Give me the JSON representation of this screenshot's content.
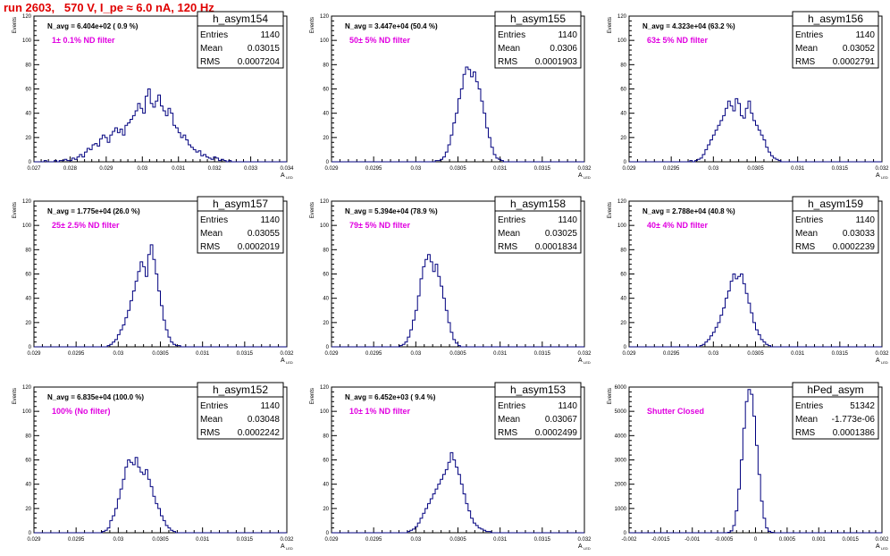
{
  "page_title": "run 2603,   570 V, I_pe ≈ 6.0 nA, 120 Hz",
  "colors": {
    "hist": "#00007f",
    "filter_text": "#e000e0",
    "title": "#e00000"
  },
  "chart_data": [
    {
      "type": "histogram",
      "name": "h_asym154",
      "stats": [
        [
          "Entries",
          "1140"
        ],
        [
          "Mean",
          "0.03015"
        ],
        [
          "RMS",
          "0.0007204"
        ]
      ],
      "navg": "N_avg = 6.404e+02 ( 0.9 %)",
      "filter": "1± 0.1% ND filter",
      "ylabel": "Events",
      "xlabel": "A",
      "xlabel_sub": "LED",
      "xlim": [
        0.027,
        0.034
      ],
      "ylim": [
        0,
        120
      ],
      "xticks": [
        "0.027",
        "0.028",
        "0.029",
        "0.03",
        "0.031",
        "0.032",
        "0.033",
        "0.034"
      ],
      "yticks": [
        "0",
        "20",
        "40",
        "60",
        "80",
        "100",
        "120"
      ],
      "values": [
        0,
        0,
        0,
        0,
        1,
        0,
        0,
        0,
        1,
        0,
        1,
        1,
        2,
        1,
        1,
        3,
        2,
        4,
        6,
        4,
        8,
        11,
        10,
        14,
        15,
        13,
        19,
        22,
        20,
        16,
        22,
        25,
        28,
        24,
        27,
        22,
        30,
        32,
        35,
        38,
        42,
        48,
        44,
        40,
        54,
        60,
        48,
        45,
        50,
        55,
        46,
        42,
        38,
        44,
        40,
        30,
        28,
        24,
        20,
        22,
        18,
        14,
        12,
        10,
        8,
        9,
        5,
        6,
        4,
        3,
        2,
        4,
        3,
        1,
        2,
        1,
        0,
        1,
        0,
        0,
        0,
        0,
        0,
        0,
        0,
        0,
        0,
        0,
        0,
        0,
        0,
        0,
        0,
        0,
        0,
        0,
        0,
        0,
        0,
        0
      ]
    },
    {
      "type": "histogram",
      "name": "h_asym155",
      "stats": [
        [
          "Entries",
          "1140"
        ],
        [
          "Mean",
          "0.0306"
        ],
        [
          "RMS",
          "0.0001903"
        ]
      ],
      "navg": "N_avg = 3.447e+04 (50.4 %)",
      "filter": "50± 5% ND filter",
      "ylabel": "Events",
      "xlabel": "A",
      "xlabel_sub": "LED",
      "xlim": [
        0.029,
        0.032
      ],
      "ylim": [
        0,
        120
      ],
      "xticks": [
        "0.029",
        "0.0295",
        "0.03",
        "0.0305",
        "0.031",
        "0.0315",
        "0.032"
      ],
      "yticks": [
        "0",
        "20",
        "40",
        "60",
        "80",
        "100",
        "120"
      ],
      "values": [
        0,
        0,
        0,
        0,
        0,
        0,
        0,
        0,
        0,
        0,
        0,
        0,
        0,
        0,
        0,
        0,
        0,
        0,
        0,
        0,
        0,
        0,
        0,
        0,
        0,
        0,
        0,
        0,
        0,
        0,
        0,
        0,
        0,
        0,
        0,
        0,
        0,
        0,
        0,
        0,
        0,
        1,
        1,
        2,
        4,
        8,
        14,
        22,
        32,
        40,
        52,
        60,
        72,
        78,
        76,
        70,
        74,
        66,
        60,
        50,
        40,
        28,
        20,
        12,
        6,
        3,
        2,
        1,
        0,
        0,
        0,
        0,
        0,
        0,
        0,
        0,
        0,
        0,
        0,
        0,
        0,
        0,
        0,
        0,
        0,
        0,
        0,
        0,
        0,
        0,
        0,
        0,
        0,
        0,
        0,
        0,
        0,
        0,
        0,
        0
      ]
    },
    {
      "type": "histogram",
      "name": "h_asym156",
      "stats": [
        [
          "Entries",
          "1140"
        ],
        [
          "Mean",
          "0.03052"
        ],
        [
          "RMS",
          "0.0002791"
        ]
      ],
      "navg": "N_avg = 4.323e+04 (63.2 %)",
      "filter": "63± 5% ND filter",
      "ylabel": "Events",
      "xlabel": "A",
      "xlabel_sub": "LED",
      "xlim": [
        0.029,
        0.032
      ],
      "ylim": [
        0,
        120
      ],
      "xticks": [
        "0.029",
        "0.0295",
        "0.03",
        "0.0305",
        "0.031",
        "0.0315",
        "0.032"
      ],
      "yticks": [
        "0",
        "20",
        "40",
        "60",
        "80",
        "100",
        "120"
      ],
      "values": [
        0,
        0,
        0,
        0,
        0,
        0,
        0,
        0,
        0,
        0,
        0,
        0,
        0,
        0,
        0,
        0,
        0,
        0,
        0,
        0,
        0,
        0,
        0,
        0,
        1,
        0,
        1,
        2,
        3,
        6,
        10,
        14,
        18,
        22,
        26,
        30,
        34,
        38,
        44,
        50,
        46,
        42,
        52,
        48,
        38,
        36,
        44,
        50,
        40,
        34,
        30,
        26,
        22,
        18,
        12,
        8,
        5,
        3,
        2,
        1,
        0,
        0,
        0,
        0,
        0,
        0,
        0,
        0,
        0,
        0,
        0,
        0,
        0,
        0,
        0,
        0,
        0,
        0,
        0,
        0,
        0,
        0,
        0,
        0,
        0,
        0,
        0,
        0,
        0,
        0,
        0,
        0,
        0,
        0,
        0,
        0,
        0,
        0,
        0,
        0
      ]
    },
    {
      "type": "histogram",
      "name": "h_asym157",
      "stats": [
        [
          "Entries",
          "1140"
        ],
        [
          "Mean",
          "0.03055"
        ],
        [
          "RMS",
          "0.0002019"
        ]
      ],
      "navg": "N_avg = 1.775e+04 (26.0 %)",
      "filter": "25± 2.5% ND filter",
      "ylabel": "Events",
      "xlabel": "A",
      "xlabel_sub": "LED",
      "xlim": [
        0.029,
        0.032
      ],
      "ylim": [
        0,
        120
      ],
      "xticks": [
        "0.029",
        "0.0295",
        "0.03",
        "0.0305",
        "0.031",
        "0.0315",
        "0.032"
      ],
      "yticks": [
        "0",
        "20",
        "40",
        "60",
        "80",
        "100",
        "120"
      ],
      "values": [
        0,
        0,
        0,
        0,
        0,
        0,
        0,
        0,
        0,
        0,
        0,
        0,
        0,
        0,
        0,
        0,
        0,
        0,
        0,
        0,
        0,
        0,
        0,
        0,
        0,
        0,
        0,
        0,
        0,
        1,
        2,
        4,
        6,
        10,
        14,
        18,
        24,
        30,
        38,
        46,
        54,
        62,
        70,
        66,
        58,
        76,
        84,
        72,
        60,
        46,
        34,
        22,
        14,
        8,
        4,
        2,
        1,
        1,
        0,
        0,
        0,
        0,
        0,
        0,
        0,
        0,
        0,
        0,
        0,
        0,
        0,
        0,
        0,
        0,
        0,
        0,
        0,
        0,
        0,
        0,
        0,
        0,
        0,
        0,
        0,
        0,
        0,
        0,
        0,
        0,
        0,
        0,
        0,
        0,
        0,
        0,
        0,
        0,
        0,
        0
      ]
    },
    {
      "type": "histogram",
      "name": "h_asym158",
      "stats": [
        [
          "Entries",
          "1140"
        ],
        [
          "Mean",
          "0.03025"
        ],
        [
          "RMS",
          "0.0001834"
        ]
      ],
      "navg": "N_avg = 5.394e+04 (78.9 %)",
      "filter": "79± 5% ND filter",
      "ylabel": "Events",
      "xlabel": "A",
      "xlabel_sub": "LED",
      "xlim": [
        0.029,
        0.032
      ],
      "ylim": [
        0,
        120
      ],
      "xticks": [
        "0.029",
        "0.0295",
        "0.03",
        "0.0305",
        "0.031",
        "0.0315",
        "0.032"
      ],
      "yticks": [
        "0",
        "20",
        "40",
        "60",
        "80",
        "100",
        "120"
      ],
      "values": [
        0,
        0,
        0,
        0,
        0,
        0,
        0,
        0,
        0,
        0,
        0,
        0,
        0,
        0,
        0,
        0,
        0,
        0,
        0,
        0,
        0,
        0,
        0,
        0,
        0,
        0,
        0,
        1,
        2,
        4,
        8,
        14,
        22,
        30,
        42,
        56,
        66,
        72,
        76,
        70,
        62,
        68,
        58,
        50,
        40,
        30,
        20,
        12,
        6,
        3,
        1,
        0,
        0,
        0,
        0,
        0,
        0,
        0,
        0,
        0,
        0,
        0,
        0,
        0,
        0,
        0,
        0,
        0,
        0,
        0,
        0,
        0,
        0,
        0,
        0,
        0,
        0,
        0,
        0,
        0,
        0,
        0,
        0,
        0,
        0,
        0,
        0,
        0,
        0,
        0,
        0,
        0,
        0,
        0,
        0,
        0,
        0,
        0,
        0,
        0
      ]
    },
    {
      "type": "histogram",
      "name": "h_asym159",
      "stats": [
        [
          "Entries",
          "1140"
        ],
        [
          "Mean",
          "0.03033"
        ],
        [
          "RMS",
          "0.0002239"
        ]
      ],
      "navg": "N_avg = 2.788e+04 (40.8 %)",
      "filter": "40± 4% ND filter",
      "ylabel": "Events",
      "xlabel": "A",
      "xlabel_sub": "LED",
      "xlim": [
        0.029,
        0.032
      ],
      "ylim": [
        0,
        120
      ],
      "xticks": [
        "0.029",
        "0.0295",
        "0.03",
        "0.0305",
        "0.031",
        "0.0315",
        "0.032"
      ],
      "yticks": [
        "0",
        "20",
        "40",
        "60",
        "80",
        "100",
        "120"
      ],
      "values": [
        0,
        0,
        0,
        0,
        0,
        0,
        0,
        0,
        0,
        0,
        0,
        0,
        0,
        0,
        0,
        0,
        0,
        0,
        0,
        0,
        0,
        0,
        0,
        0,
        0,
        0,
        0,
        0,
        1,
        2,
        4,
        6,
        9,
        12,
        16,
        20,
        26,
        32,
        40,
        46,
        54,
        60,
        56,
        58,
        60,
        52,
        44,
        36,
        28,
        20,
        14,
        10,
        6,
        4,
        2,
        1,
        0,
        0,
        0,
        0,
        0,
        0,
        0,
        0,
        0,
        0,
        0,
        0,
        0,
        0,
        0,
        0,
        0,
        0,
        0,
        0,
        0,
        0,
        0,
        0,
        0,
        0,
        0,
        0,
        0,
        0,
        0,
        0,
        0,
        0,
        0,
        0,
        0,
        0,
        0,
        0,
        0,
        0,
        0,
        0
      ]
    },
    {
      "type": "histogram",
      "name": "h_asym152",
      "stats": [
        [
          "Entries",
          "1140"
        ],
        [
          "Mean",
          "0.03048"
        ],
        [
          "RMS",
          "0.0002242"
        ]
      ],
      "navg": "N_avg = 6.835e+04 (100.0 %)",
      "filter": "100% (No filter)",
      "ylabel": "Events",
      "xlabel": "A",
      "xlabel_sub": "LED",
      "xlim": [
        0.029,
        0.032
      ],
      "ylim": [
        0,
        120
      ],
      "xticks": [
        "0.029",
        "0.0295",
        "0.03",
        "0.0305",
        "0.031",
        "0.0315",
        "0.032"
      ],
      "yticks": [
        "0",
        "20",
        "40",
        "60",
        "80",
        "100",
        "120"
      ],
      "values": [
        0,
        0,
        0,
        0,
        0,
        0,
        0,
        0,
        0,
        0,
        0,
        0,
        0,
        0,
        0,
        0,
        0,
        0,
        0,
        0,
        0,
        0,
        0,
        0,
        0,
        0,
        0,
        1,
        2,
        4,
        10,
        14,
        20,
        28,
        36,
        44,
        54,
        60,
        58,
        56,
        62,
        54,
        50,
        48,
        52,
        44,
        38,
        30,
        24,
        20,
        14,
        10,
        6,
        4,
        2,
        1,
        0,
        0,
        0,
        0,
        0,
        0,
        0,
        0,
        0,
        0,
        0,
        0,
        0,
        0,
        0,
        0,
        0,
        0,
        0,
        0,
        0,
        0,
        0,
        0,
        0,
        0,
        0,
        0,
        0,
        0,
        0,
        0,
        0,
        0,
        0,
        0,
        0,
        0,
        0,
        0,
        0,
        0,
        0,
        0
      ]
    },
    {
      "type": "histogram",
      "name": "h_asym153",
      "stats": [
        [
          "Entries",
          "1140"
        ],
        [
          "Mean",
          "0.03067"
        ],
        [
          "RMS",
          "0.0002499"
        ]
      ],
      "navg": "N_avg = 6.452e+03 ( 9.4 %)",
      "filter": "10± 1% ND filter",
      "ylabel": "Events",
      "xlabel": "A",
      "xlabel_sub": "LED",
      "xlim": [
        0.029,
        0.032
      ],
      "ylim": [
        0,
        120
      ],
      "xticks": [
        "0.029",
        "0.0295",
        "0.03",
        "0.0305",
        "0.031",
        "0.0315",
        "0.032"
      ],
      "yticks": [
        "0",
        "20",
        "40",
        "60",
        "80",
        "100",
        "120"
      ],
      "values": [
        0,
        0,
        0,
        0,
        0,
        0,
        0,
        0,
        0,
        0,
        0,
        0,
        0,
        0,
        0,
        0,
        0,
        0,
        0,
        0,
        0,
        0,
        0,
        0,
        0,
        0,
        0,
        0,
        0,
        0,
        1,
        2,
        3,
        5,
        8,
        12,
        16,
        20,
        24,
        28,
        32,
        36,
        40,
        44,
        48,
        52,
        58,
        66,
        60,
        54,
        48,
        40,
        32,
        24,
        18,
        12,
        8,
        6,
        4,
        3,
        2,
        1,
        1,
        0,
        0,
        0,
        0,
        0,
        0,
        0,
        0,
        0,
        0,
        0,
        0,
        0,
        0,
        0,
        0,
        0,
        0,
        0,
        0,
        0,
        0,
        0,
        0,
        0,
        0,
        0,
        0,
        0,
        0,
        0,
        0,
        0,
        0,
        0,
        0,
        0
      ]
    },
    {
      "type": "histogram",
      "name": "hPed_asym",
      "stats": [
        [
          "Entries",
          "51342"
        ],
        [
          "Mean",
          "-1.773e-06"
        ],
        [
          "RMS",
          "0.0001386"
        ]
      ],
      "navg": "",
      "filter": "Shutter Closed",
      "ylabel": "Events",
      "xlabel": "A",
      "xlabel_sub": "LED",
      "xlim": [
        -0.002,
        0.002
      ],
      "ylim": [
        0,
        6000
      ],
      "xticks": [
        "-0.002",
        "-0.0015",
        "-0.001",
        "-0.0005",
        "0",
        "0.0005",
        "0.001",
        "0.0015",
        "0.002"
      ],
      "yticks": [
        "0",
        "1000",
        "2000",
        "3000",
        "4000",
        "5000",
        "6000"
      ],
      "values": [
        0,
        0,
        0,
        0,
        0,
        0,
        0,
        0,
        0,
        0,
        0,
        0,
        0,
        0,
        0,
        0,
        0,
        0,
        0,
        0,
        0,
        0,
        0,
        0,
        0,
        0,
        0,
        0,
        0,
        0,
        0,
        0,
        0,
        0,
        0,
        0,
        0,
        0,
        0,
        20,
        80,
        300,
        900,
        1800,
        3000,
        4300,
        5400,
        5900,
        5700,
        4800,
        3600,
        2400,
        1300,
        600,
        200,
        60,
        20,
        0,
        0,
        0,
        0,
        0,
        0,
        0,
        0,
        0,
        0,
        0,
        0,
        0,
        0,
        0,
        0,
        0,
        0,
        0,
        0,
        0,
        0,
        0,
        0,
        0,
        0,
        0,
        0,
        0,
        0,
        0,
        0,
        0,
        0,
        0,
        0,
        0,
        0,
        0,
        0,
        0,
        0,
        0
      ]
    }
  ]
}
